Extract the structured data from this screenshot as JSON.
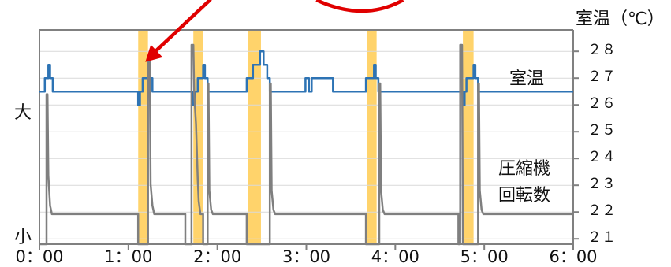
{
  "chart_data": {
    "type": "line",
    "x_ticks": [
      "0：00",
      "1：00",
      "2：00",
      "3：00",
      "4：00",
      "5：00",
      "6：00"
    ],
    "xlim": [
      0,
      6
    ],
    "right_axis": {
      "title": "室温（℃）",
      "ticks": [
        "２８",
        "２７",
        "２６",
        "２５",
        "２４",
        "２３",
        "２２",
        "２１"
      ],
      "tick_values": [
        28,
        27,
        26,
        25,
        24,
        23,
        22,
        21
      ],
      "ylim": [
        20.8,
        28.8
      ]
    },
    "left_axis": {
      "top_label": "大",
      "bottom_label": "小"
    },
    "highlight_bands": [
      {
        "x": [
          1.11,
          1.22
        ]
      },
      {
        "x": [
          1.73,
          1.84
        ]
      },
      {
        "x": [
          2.34,
          2.49
        ]
      },
      {
        "x": [
          3.68,
          3.79
        ]
      },
      {
        "x": [
          4.76,
          4.88
        ]
      }
    ],
    "series": [
      {
        "name": "室温",
        "axis": "right",
        "color": "#2d73b4",
        "points": [
          [
            0,
            26.5
          ],
          [
            0.06,
            26.5
          ],
          [
            0.06,
            27.0
          ],
          [
            0.1,
            27.0
          ],
          [
            0.1,
            27.5
          ],
          [
            0.12,
            27.5
          ],
          [
            0.12,
            27.0
          ],
          [
            0.15,
            27.0
          ],
          [
            0.15,
            26.5
          ],
          [
            1.11,
            26.5
          ],
          [
            1.11,
            26.0
          ],
          [
            1.13,
            26.0
          ],
          [
            1.13,
            26.5
          ],
          [
            1.16,
            26.5
          ],
          [
            1.16,
            27.0
          ],
          [
            1.22,
            27.0
          ],
          [
            1.22,
            27.5
          ],
          [
            1.24,
            27.5
          ],
          [
            1.24,
            27.0
          ],
          [
            1.27,
            27.0
          ],
          [
            1.27,
            26.5
          ],
          [
            1.73,
            26.5
          ],
          [
            1.73,
            26.0
          ],
          [
            1.75,
            26.0
          ],
          [
            1.75,
            26.5
          ],
          [
            1.78,
            26.5
          ],
          [
            1.78,
            27.0
          ],
          [
            1.84,
            27.0
          ],
          [
            1.84,
            27.5
          ],
          [
            1.86,
            27.5
          ],
          [
            1.86,
            27.0
          ],
          [
            1.89,
            27.0
          ],
          [
            1.89,
            26.5
          ],
          [
            2.33,
            26.5
          ],
          [
            2.33,
            27.0
          ],
          [
            2.4,
            27.0
          ],
          [
            2.4,
            27.5
          ],
          [
            2.48,
            27.5
          ],
          [
            2.48,
            28.0
          ],
          [
            2.52,
            28.0
          ],
          [
            2.52,
            27.5
          ],
          [
            2.56,
            27.5
          ],
          [
            2.56,
            27.0
          ],
          [
            2.59,
            27.0
          ],
          [
            2.59,
            26.5
          ],
          [
            2.99,
            26.5
          ],
          [
            2.99,
            27.0
          ],
          [
            3.03,
            27.0
          ],
          [
            3.03,
            26.5
          ],
          [
            3.06,
            26.5
          ],
          [
            3.06,
            27.0
          ],
          [
            3.3,
            27.0
          ],
          [
            3.3,
            26.5
          ],
          [
            3.67,
            26.5
          ],
          [
            3.67,
            27.0
          ],
          [
            3.76,
            27.0
          ],
          [
            3.76,
            27.5
          ],
          [
            3.78,
            27.5
          ],
          [
            3.78,
            27.0
          ],
          [
            3.81,
            27.0
          ],
          [
            3.81,
            26.5
          ],
          [
            4.76,
            26.5
          ],
          [
            4.76,
            26.0
          ],
          [
            4.78,
            26.0
          ],
          [
            4.78,
            26.5
          ],
          [
            4.8,
            26.5
          ],
          [
            4.8,
            27.0
          ],
          [
            4.88,
            27.0
          ],
          [
            4.88,
            27.5
          ],
          [
            4.9,
            27.5
          ],
          [
            4.9,
            27.0
          ],
          [
            4.93,
            27.0
          ],
          [
            4.93,
            26.5
          ],
          [
            6.0,
            26.5
          ]
        ],
        "label": "室温"
      },
      {
        "name": "圧縮機回転数",
        "axis": "left",
        "color": "#7f7f7f",
        "points": [
          [
            0,
            0
          ],
          [
            0.08,
            0
          ],
          [
            0.08,
            0.7
          ],
          [
            0.09,
            0.7
          ],
          [
            0.1,
            0.32
          ],
          [
            0.12,
            0.18
          ],
          [
            0.14,
            0.14
          ],
          [
            1.11,
            0.14
          ],
          [
            1.11,
            0
          ],
          [
            1.22,
            0
          ],
          [
            1.22,
            0.85
          ],
          [
            1.24,
            0.85
          ],
          [
            1.25,
            0.28
          ],
          [
            1.27,
            0.18
          ],
          [
            1.29,
            0.14
          ],
          [
            1.64,
            0.14
          ],
          [
            1.64,
            0
          ],
          [
            1.71,
            0
          ],
          [
            1.71,
            0.93
          ],
          [
            1.73,
            0.93
          ],
          [
            1.74,
            0.7
          ],
          [
            1.76,
            0.56
          ],
          [
            1.78,
            0.3
          ],
          [
            1.79,
            0.2
          ],
          [
            1.81,
            0.14
          ],
          [
            1.84,
            0.14
          ],
          [
            1.84,
            0
          ],
          [
            1.89,
            0
          ],
          [
            1.89,
            0.75
          ],
          [
            1.9,
            0.75
          ],
          [
            1.91,
            0.25
          ],
          [
            1.93,
            0.16
          ],
          [
            1.95,
            0.14
          ],
          [
            2.33,
            0.14
          ],
          [
            2.33,
            0
          ],
          [
            2.59,
            0
          ],
          [
            2.59,
            0.75
          ],
          [
            2.6,
            0.75
          ],
          [
            2.61,
            0.25
          ],
          [
            2.63,
            0.16
          ],
          [
            2.65,
            0.14
          ],
          [
            3.67,
            0.14
          ],
          [
            3.67,
            0
          ],
          [
            3.82,
            0
          ],
          [
            3.82,
            0.75
          ],
          [
            3.83,
            0.75
          ],
          [
            3.84,
            0.25
          ],
          [
            3.86,
            0.16
          ],
          [
            3.88,
            0.14
          ],
          [
            4.71,
            0.14
          ],
          [
            4.71,
            0
          ],
          [
            4.73,
            0
          ],
          [
            4.73,
            0.93
          ],
          [
            4.75,
            0.93
          ],
          [
            4.76,
            0
          ],
          [
            4.93,
            0
          ],
          [
            4.93,
            0.75
          ],
          [
            4.94,
            0.75
          ],
          [
            4.95,
            0.25
          ],
          [
            4.97,
            0.16
          ],
          [
            4.99,
            0.14
          ],
          [
            6.0,
            0.14
          ]
        ],
        "label": "圧縮機回転数",
        "label_lines": [
          "圧縮機",
          "回転数"
        ]
      }
    ],
    "annotations": [
      {
        "type": "arrow",
        "color": "#e00000",
        "points_to": [
          1.19,
          27.6
        ]
      },
      {
        "type": "ellipse-edge",
        "color": "#e00000",
        "at": [
          2.75,
          28.8
        ]
      }
    ],
    "colors": {
      "band": "#ffd36b",
      "grid": "#d9d9d9",
      "axis": "#808080",
      "text": "#111111"
    }
  }
}
